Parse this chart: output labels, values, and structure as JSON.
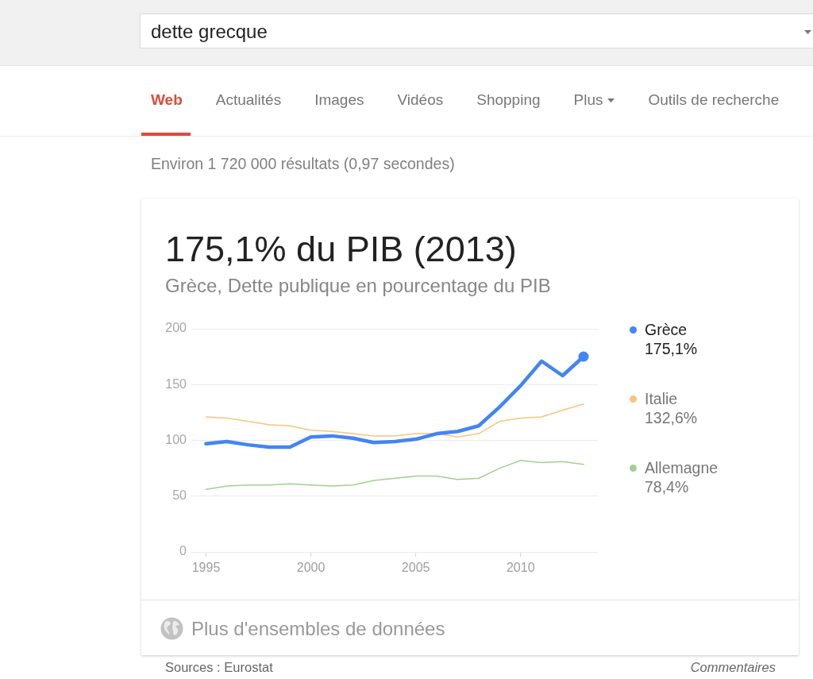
{
  "chart_data": {
    "type": "line",
    "title": "175,1% du PIB (2013)",
    "subtitle": "Grèce, Dette publique en pourcentage du PIB",
    "x": [
      1995,
      1996,
      1997,
      1998,
      1999,
      2000,
      2001,
      2002,
      2003,
      2004,
      2005,
      2006,
      2007,
      2008,
      2009,
      2010,
      2011,
      2012,
      2013
    ],
    "series": [
      {
        "name": "Grèce",
        "color": "#4285f4",
        "values": [
          97,
          99,
          96,
          94,
          94,
          103,
          104,
          102,
          98,
          99,
          101,
          106,
          108,
          113,
          130,
          149,
          171,
          158,
          175.1
        ]
      },
      {
        "name": "Italie",
        "color": "#fbc27f",
        "values": [
          121,
          120,
          117,
          114,
          113,
          109,
          108,
          106,
          104,
          104,
          106,
          106,
          103,
          106,
          117,
          120,
          121,
          127,
          132.6
        ]
      },
      {
        "name": "Allemagne",
        "color": "#a2d08e",
        "values": [
          56,
          59,
          60,
          60,
          61,
          60,
          59,
          60,
          64,
          66,
          68,
          68,
          65,
          66,
          75,
          82,
          80,
          81,
          78.4
        ]
      },
      {
        "type": "scatter",
        "color": "#4285f4",
        "marker": "circle",
        "x": [
          2013
        ],
        "values": [
          175.1
        ]
      }
    ],
    "xlim": [
      1994.3,
      2013.7
    ],
    "xticks": [
      1995,
      2000,
      2005,
      2010
    ],
    "ylim": [
      0,
      200
    ],
    "yticks": [
      0,
      50,
      100,
      150,
      200
    ],
    "grid": "y",
    "legend": "right",
    "marker": "none",
    "annotations": [
      "dette grecque",
      "Web",
      "Actualités",
      "Images",
      "Vidéos",
      "Shopping",
      "Plus",
      "Outils de recherche",
      "Environ 1 720 000 résultats (0,97 secondes)",
      "Plus d'ensembles de données",
      "Sources : Eurostat",
      "Commentaires",
      "175,1%",
      "132,6%",
      "78,4%"
    ]
  }
}
